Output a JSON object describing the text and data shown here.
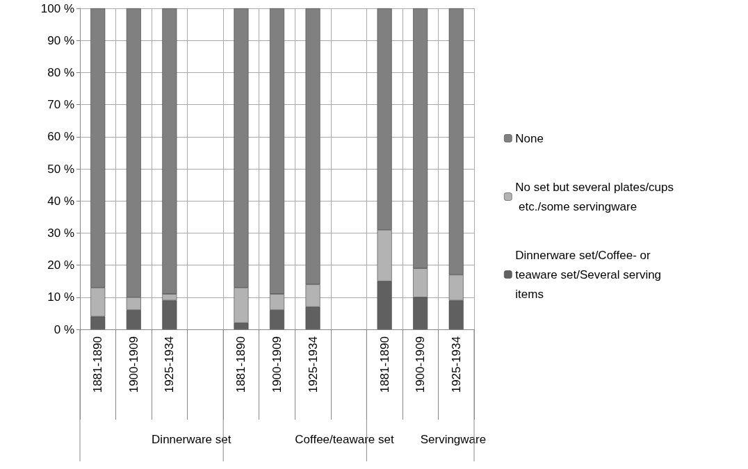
{
  "chart_data": {
    "type": "bar",
    "stacked": true,
    "categories": [
      "1881-1890",
      "1900-1909",
      "1925-1934",
      null,
      "1881-1890",
      "1900-1909",
      "1925-1934",
      null,
      "1881-1890",
      "1900-1909",
      "1925-1934"
    ],
    "series": [
      {
        "name": "Dinnerware set/Coffee- or teaware set/Several serving items",
        "color": "#606060",
        "values": [
          4,
          6,
          9,
          null,
          2,
          6,
          7,
          null,
          15,
          10,
          9
        ]
      },
      {
        "name": "No set but several plates/cups etc./some servingware",
        "color": "#b3b3b3",
        "values": [
          9,
          4,
          2,
          null,
          11,
          5,
          7,
          null,
          16,
          9,
          8
        ]
      },
      {
        "name": "None",
        "color": "#808080",
        "values": [
          87,
          90,
          89,
          null,
          87,
          89,
          86,
          null,
          69,
          81,
          83
        ]
      }
    ],
    "ylim": [
      0,
      100
    ],
    "yticks": [
      {
        "value": 0,
        "label": "0 %"
      },
      {
        "value": 10,
        "label": "10 %"
      },
      {
        "value": 20,
        "label": "20 %"
      },
      {
        "value": 30,
        "label": "30 %"
      },
      {
        "value": 40,
        "label": "40 %"
      },
      {
        "value": 50,
        "label": "50 %"
      },
      {
        "value": 60,
        "label": "60 %"
      },
      {
        "value": 70,
        "label": "70 %"
      },
      {
        "value": 80,
        "label": "80 %"
      },
      {
        "value": 90,
        "label": "90 %"
      },
      {
        "value": 100,
        "label": "100 %"
      }
    ],
    "grid": true,
    "legend": "right",
    "annotations": [
      "Dinnerware set",
      "Coffee/teaware set",
      "Servingware"
    ]
  }
}
